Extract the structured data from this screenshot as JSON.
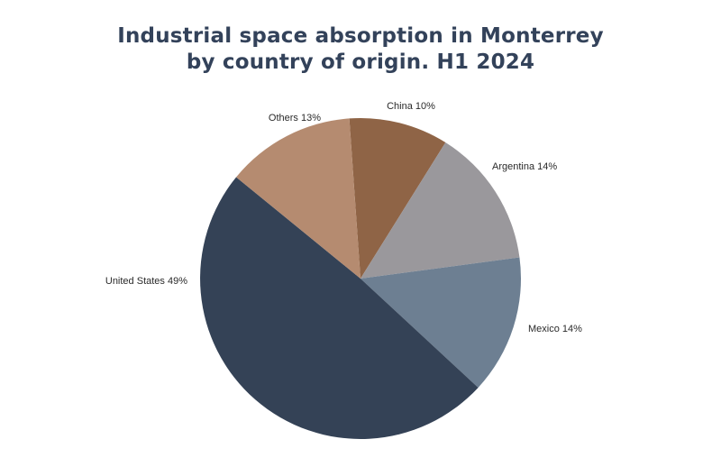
{
  "title_lines": [
    "Industrial space absorption in Monterrey",
    "by country of origin. H1 2024"
  ],
  "chart_data": {
    "type": "pie",
    "title": "Industrial space absorption in Monterrey by country of origin. H1 2024",
    "unit": "%",
    "legend": "none",
    "slices": [
      {
        "label": "China",
        "value": 10,
        "display": "China 10%",
        "color": "#8f6446"
      },
      {
        "label": "Argentina",
        "value": 14,
        "display": "Argentina 14%",
        "color": "#9a989c"
      },
      {
        "label": "Mexico",
        "value": 14,
        "display": "Mexico 14%",
        "color": "#6d7f92"
      },
      {
        "label": "United States",
        "value": 49,
        "display": "United States 49%",
        "color": "#344256"
      },
      {
        "label": "Others",
        "value": 13,
        "display": "Others 13%",
        "color": "#b58b70"
      }
    ]
  }
}
